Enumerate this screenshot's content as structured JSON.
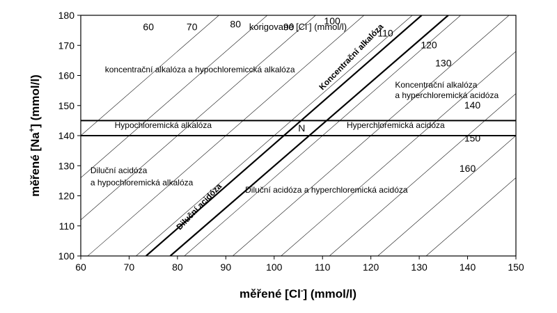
{
  "chart_data": {
    "type": "line",
    "title": "",
    "xlabel": "měřené [Cl] (mmol/l)",
    "xlabel_parts": {
      "main": "měřené [Cl",
      "sup": "-",
      "tail": "] (mmol/l)"
    },
    "ylabel": "měřené [Na+] (mmol/l)",
    "ylabel_parts": {
      "main": "měřené [Na",
      "sup": "+",
      "tail": "] (mmol/l)"
    },
    "xlim": [
      60,
      150
    ],
    "ylim": [
      100,
      180
    ],
    "xticks": [
      60,
      70,
      80,
      90,
      100,
      110,
      120,
      130,
      140,
      150
    ],
    "yticks": [
      100,
      110,
      120,
      130,
      140,
      150,
      160,
      170,
      180
    ],
    "grid": false,
    "contour_title": "korigované [Cl] (mmol/l)",
    "contour_title_parts": {
      "main": "korigované [Cl",
      "sup": "-",
      "tail": "] (mmol/l)"
    },
    "contour_slope": 1.4,
    "corrected_cl_lines": [
      {
        "value": 60,
        "label": "60",
        "label_at": [
          74,
          175
        ]
      },
      {
        "value": 70,
        "label": "70",
        "label_at": [
          83,
          175
        ]
      },
      {
        "value": 80,
        "label": "80",
        "label_at": [
          92,
          176
        ]
      },
      {
        "value": 90,
        "label": "90",
        "label_at": [
          103,
          175
        ]
      },
      {
        "value": 100,
        "label": "100",
        "label_at": [
          112,
          177
        ]
      },
      {
        "value": 110,
        "label": "110",
        "label_at": [
          123,
          173
        ]
      },
      {
        "value": 120,
        "label": "120",
        "label_at": [
          132,
          169
        ]
      },
      {
        "value": 130,
        "label": "130",
        "label_at": [
          135,
          163
        ]
      },
      {
        "value": 140,
        "label": "140",
        "label_at": [
          141,
          149
        ]
      },
      {
        "value": 150,
        "label": "150",
        "label_at": [
          141,
          138
        ]
      },
      {
        "value": 160,
        "label": "160",
        "label_at": [
          140,
          128
        ]
      }
    ],
    "normal_na_lines": [
      140,
      145
    ],
    "concentration_lines": [
      {
        "name": "left",
        "x1": 73.5,
        "y1": 100,
        "x2": 130.5,
        "y2": 180
      },
      {
        "name": "right",
        "x1": 78.5,
        "y1": 100,
        "x2": 136,
        "y2": 180
      }
    ],
    "normal_point": {
      "label": "N",
      "x": 105.7,
      "y": 142.5
    },
    "regions": [
      {
        "text": "koncentrační alkalóza a hypochloremiccká alkalóza",
        "x": 65,
        "y": 161,
        "rotate": 0,
        "bold": false
      },
      {
        "text": "Koncentrační alkalóza",
        "x": 125,
        "y": 156,
        "rotate": 0,
        "bold": false
      },
      {
        "text": "a hyperchloremická acidóza",
        "x": 125,
        "y": 152.5,
        "rotate": 0,
        "bold": false
      },
      {
        "text": "Hypochloremická alkalóza",
        "x": 67,
        "y": 142.5,
        "rotate": 0,
        "bold": false
      },
      {
        "text": "Hyperchloremická acidóza",
        "x": 115,
        "y": 142.5,
        "rotate": 0,
        "bold": false
      },
      {
        "text": "Diluční acidóza",
        "x": 62,
        "y": 127.5,
        "rotate": 0,
        "bold": false
      },
      {
        "text": "a hypochloremická alkalóza",
        "x": 62,
        "y": 123.5,
        "rotate": 0,
        "bold": false
      },
      {
        "text": "Diluční acidóza a hyperchloremická acidóza",
        "x": 94,
        "y": 121,
        "rotate": 0,
        "bold": false
      },
      {
        "text": "Koncentrační alkalóza",
        "x": 110,
        "y": 155,
        "rotate": -46,
        "bold": true
      },
      {
        "text": "Diluční acidóza",
        "x": 80.5,
        "y": 108.5,
        "rotate": -46,
        "bold": true
      }
    ]
  }
}
